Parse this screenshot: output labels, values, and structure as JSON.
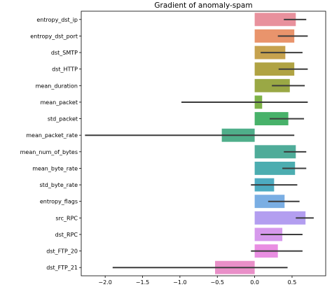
{
  "chart_data": {
    "type": "bar",
    "orientation": "horizontal",
    "title": "Gradient of anomaly-spam",
    "xlabel": "",
    "ylabel": "",
    "xlim": [
      -2.32,
      0.95
    ],
    "xticks": [
      -2.0,
      -1.5,
      -1.0,
      -0.5,
      0.0,
      0.5
    ],
    "xtick_labels": [
      "−2.0",
      "−1.5",
      "−1.0",
      "−0.5",
      "0.0",
      "0.5"
    ],
    "grid": false,
    "legend": "none",
    "categories": [
      "entropy_dst_ip",
      "entropy_dst_port",
      "dst_SMTP",
      "dst_HTTP",
      "mean_duration",
      "mean_packet",
      "std_packet",
      "mean_packet_rate",
      "mean_num_of_bytes",
      "mean_byte_rate",
      "std_byte_rate",
      "entropy_flags",
      "src_RPC",
      "dst_RPC",
      "dst_FTP_20",
      "dst_FTP_21"
    ],
    "values": [
      0.55,
      0.53,
      0.41,
      0.53,
      0.47,
      0.1,
      0.45,
      -0.44,
      0.55,
      0.54,
      0.26,
      0.4,
      0.68,
      0.37,
      0.31,
      -0.53
    ],
    "error_low": [
      0.39,
      0.31,
      0.08,
      0.32,
      0.23,
      -0.98,
      0.2,
      -2.27,
      0.39,
      0.37,
      -0.05,
      0.18,
      0.55,
      0.08,
      -0.05,
      -1.9
    ],
    "error_high": [
      0.69,
      0.71,
      0.64,
      0.71,
      0.67,
      0.71,
      0.66,
      0.53,
      0.69,
      0.69,
      0.57,
      0.6,
      0.79,
      0.64,
      0.64,
      0.44
    ],
    "colors": [
      "#e8919d",
      "#e9946c",
      "#c6a24e",
      "#b0a343",
      "#9aa845",
      "#7db247",
      "#48b26a",
      "#4fae8a",
      "#4fac99",
      "#4cadb0",
      "#4dabc1",
      "#7aaee3",
      "#b39ef0",
      "#d699ec",
      "#e98ee2",
      "#e98fc8"
    ]
  }
}
